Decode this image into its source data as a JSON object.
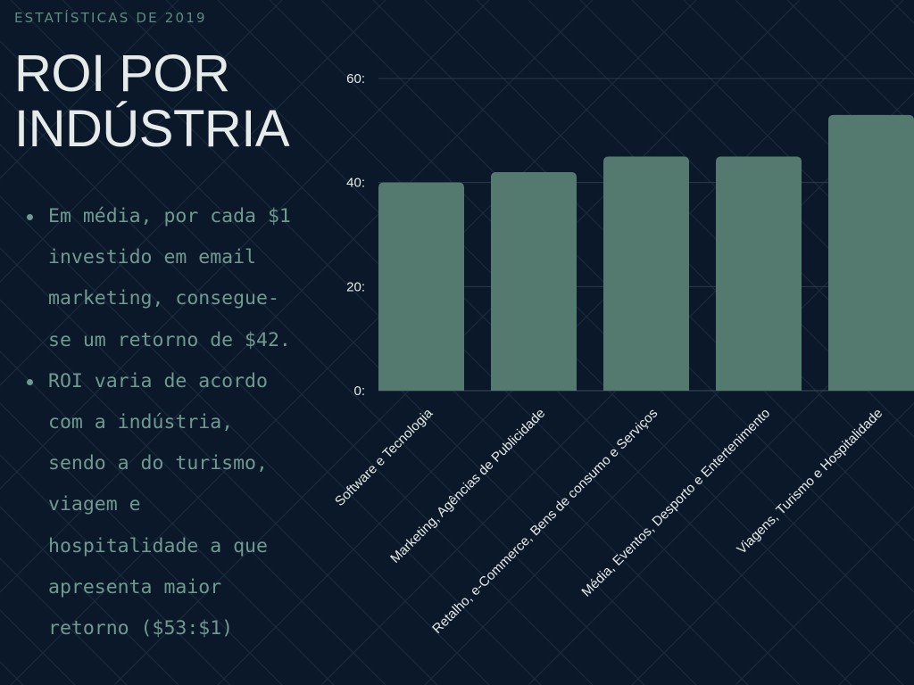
{
  "header": {
    "kicker": "ESTATÍSTICAS DE 2019",
    "title": "ROI POR INDÚSTRIA"
  },
  "bullets": [
    "Em média, por cada $1 investido em email marketing, consegue-se um retorno de $42.",
    "ROI varia de acordo com a indústria, sendo a do turismo, viagem e hospitalidade a que apresenta maior retorno ($53:$1)"
  ],
  "colors": {
    "background": "#0b182a",
    "bar": "#547a6f",
    "accent_text": "#6f9a90",
    "title_text": "#e4ebe8"
  },
  "chart_data": {
    "type": "bar",
    "categories": [
      "Software e Tecnologia",
      "Marketing, Agências de Publicidade",
      "Retalho, e-Commerce, Bens de consumo e Serviços",
      "Média, Eventos, Desporto e Entertenimento",
      "Viagens, Turismo e Hospitalidade"
    ],
    "values": [
      40,
      42,
      45,
      45,
      53
    ],
    "yticks": [
      "0:",
      "20:",
      "40:",
      "60:"
    ],
    "ytick_values": [
      0,
      20,
      40,
      60
    ],
    "ylim": [
      0,
      60
    ],
    "grid": true
  }
}
